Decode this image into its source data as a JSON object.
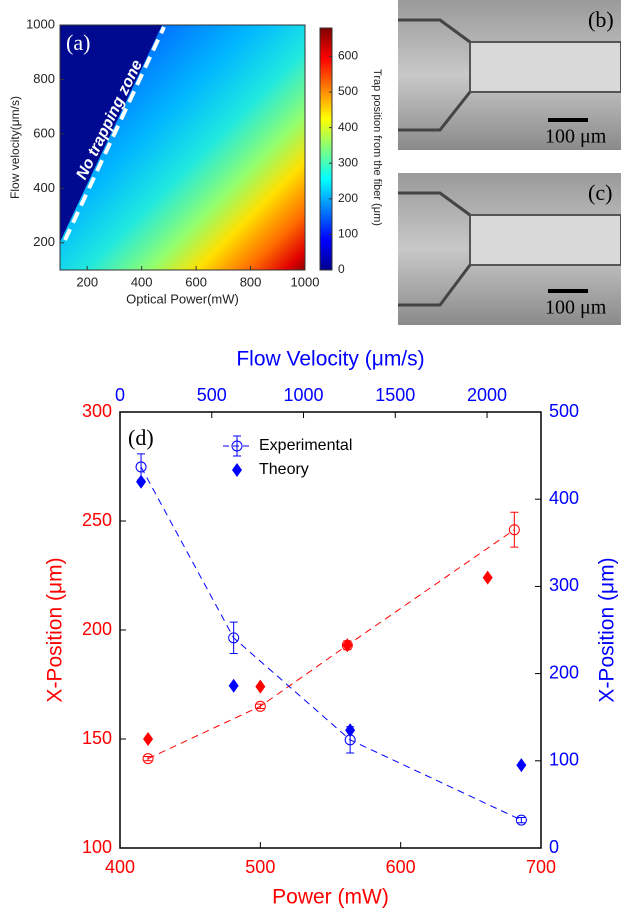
{
  "chart_data": [
    {
      "type": "heatmap",
      "label": "(a)",
      "annotation": "No trapping zone",
      "xlabel": "Optical Power(mW)",
      "ylabel": "Flow velocity(μm/s)",
      "colorbar_label": "Trap position from the fiber (μm)",
      "xlim": [
        100,
        1000
      ],
      "xticks": [
        200,
        400,
        600,
        800,
        1000
      ],
      "ylim": [
        100,
        1000
      ],
      "yticks": [
        200,
        400,
        600,
        800,
        1000
      ],
      "clim": [
        0,
        680
      ],
      "cticks": [
        0,
        100,
        200,
        300,
        400,
        500,
        600
      ],
      "colormap": "jet"
    },
    {
      "type": "line",
      "label": "(d)",
      "xlabel": "Power (mW)",
      "x2label": "Flow Velocity (μm/s)",
      "ylabel": "X-Position (μm)",
      "y2label": "X-Position (μm)",
      "xlim": [
        400,
        700
      ],
      "xticks": [
        400,
        500,
        600,
        700
      ],
      "x2lim": [
        0,
        2294
      ],
      "x2ticks": [
        0,
        500,
        1000,
        1500,
        2000
      ],
      "ylim": [
        100,
        300
      ],
      "yticks": [
        100,
        150,
        200,
        250,
        300
      ],
      "y2lim": [
        0,
        500
      ],
      "y2ticks": [
        0,
        100,
        200,
        300,
        400,
        500
      ],
      "axis_colors": {
        "x": "#ff0000",
        "x2": "#0000ff",
        "y": "#ff0000",
        "y2": "#0000ff"
      },
      "legend": "upper center",
      "series": [
        {
          "name": "Experimental",
          "color": "#ff0000",
          "axis": "y",
          "marker": "circle",
          "dashed": true,
          "x": [
            420,
            500,
            562,
            681
          ],
          "values": [
            141,
            165,
            193,
            246
          ],
          "errors": [
            1,
            1,
            2,
            8
          ]
        },
        {
          "name": "Theory",
          "color": "#ff0000",
          "axis": "y",
          "marker": "diamond",
          "x": [
            420,
            500,
            562,
            662
          ],
          "values": [
            150,
            174,
            193,
            224
          ]
        },
        {
          "name": "Experimental",
          "color": "#0000ff",
          "axis": "y2",
          "marker": "circle",
          "dashed": true,
          "x": [
            415,
            481,
            564,
            686
          ],
          "values": [
            437,
            241,
            124,
            32
          ],
          "errors": [
            15,
            18,
            15,
            3
          ]
        },
        {
          "name": "Theory",
          "color": "#0000ff",
          "axis": "y2",
          "marker": "diamond",
          "x": [
            415,
            481,
            564,
            686
          ],
          "values": [
            420,
            186,
            135,
            95
          ]
        }
      ]
    }
  ],
  "micrographs": [
    {
      "label": "(b)",
      "scale_bar": "100 μm"
    },
    {
      "label": "(c)",
      "scale_bar": "100 μm"
    }
  ]
}
